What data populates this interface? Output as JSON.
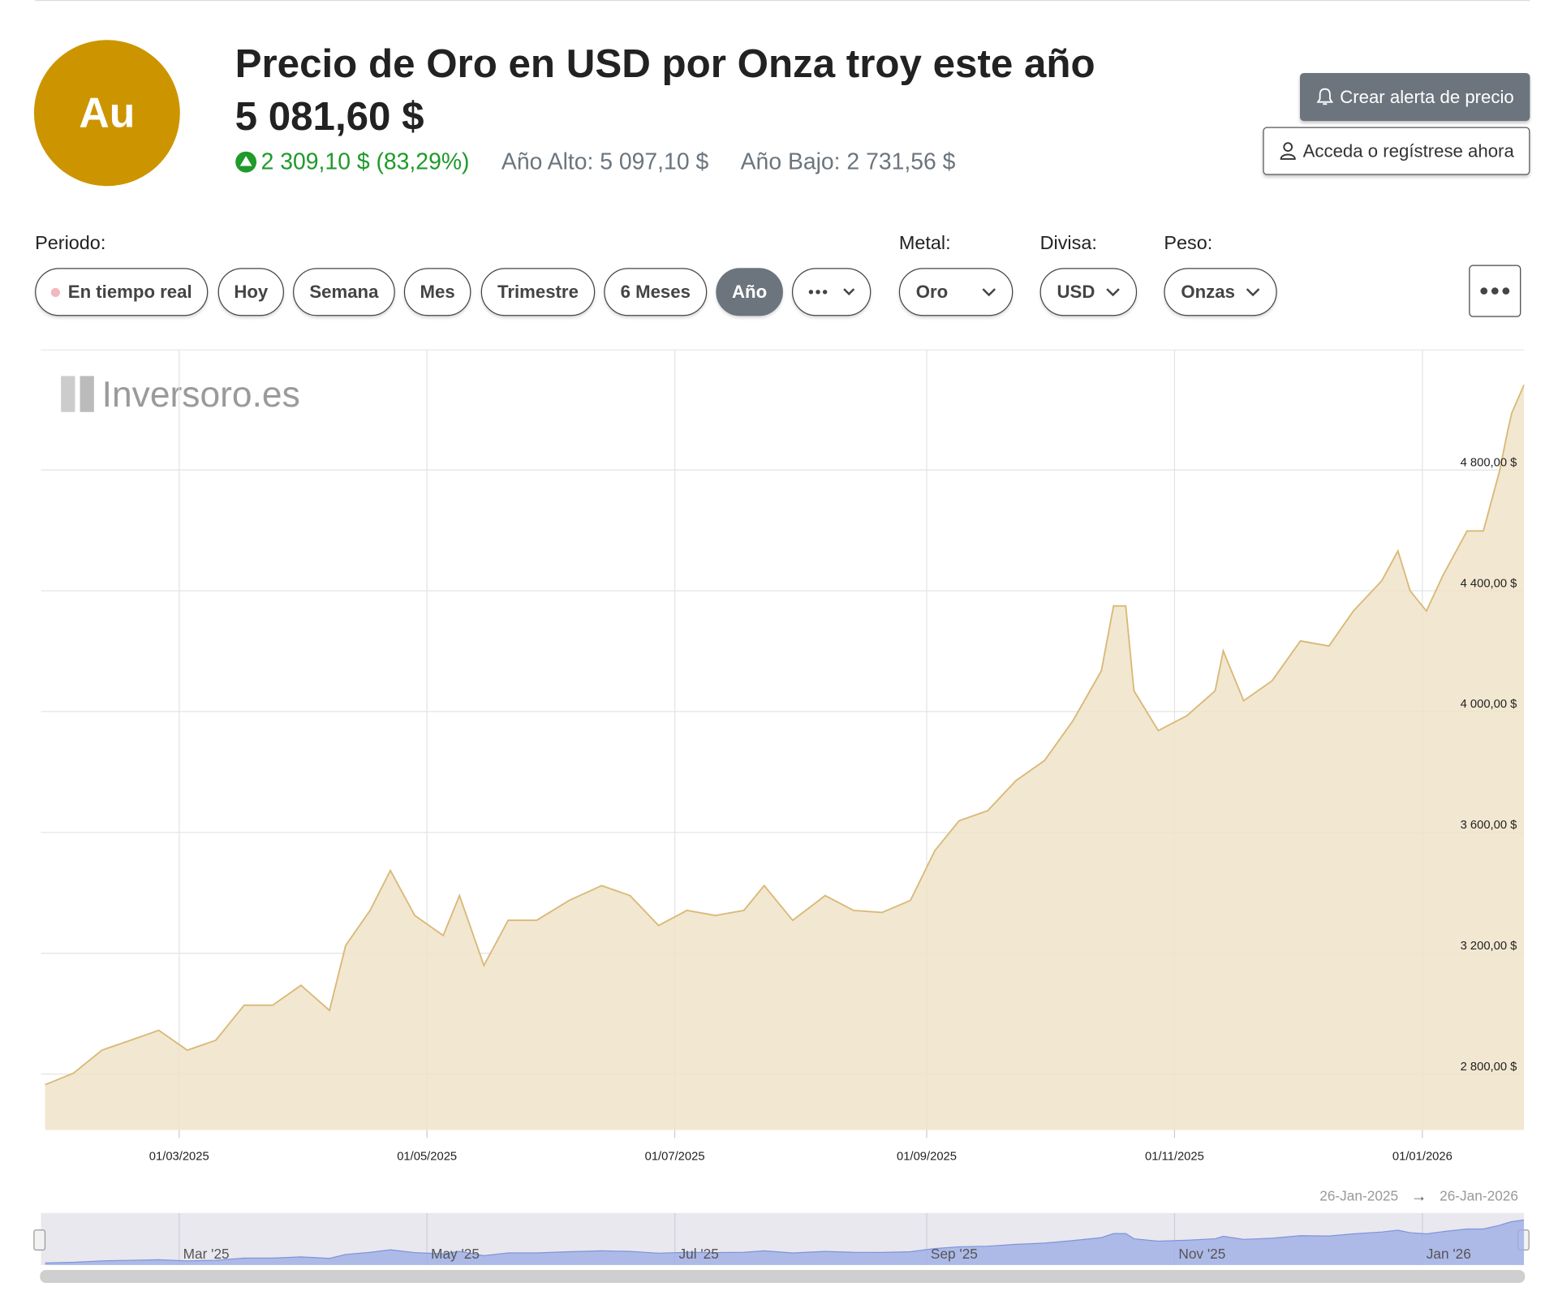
{
  "header": {
    "symbol": "Au",
    "title": "Precio de Oro en USD por Onza troy este año",
    "price": "5 081,60 $",
    "change": "2 309,10 $ (83,29%)",
    "year_high": "Año Alto: 5 097,10 $",
    "year_low": "Año Bajo: 2 731,56 $",
    "alert_button": "Crear alerta de precio",
    "login_button": "Acceda o regístrese ahora"
  },
  "controls": {
    "period_label": "Periodo:",
    "periods": [
      "En tiempo real",
      "Hoy",
      "Semana",
      "Mes",
      "Trimestre",
      "6 Meses",
      "Año"
    ],
    "active_period": "Año",
    "metal_label": "Metal:",
    "metal": "Oro",
    "currency_label": "Divisa:",
    "currency": "USD",
    "weight_label": "Peso:",
    "weight": "Onzas"
  },
  "chart_data": {
    "type": "area",
    "watermark": "Inversoro.es",
    "color": "#d9b977",
    "fill": "#f0e3c9",
    "grid": true,
    "x": [
      "2025-01-27",
      "2025-02-03",
      "2025-02-10",
      "2025-02-17",
      "2025-02-24",
      "2025-03-03",
      "2025-03-10",
      "2025-03-17",
      "2025-03-24",
      "2025-03-31",
      "2025-04-07",
      "2025-04-11",
      "2025-04-17",
      "2025-04-22",
      "2025-04-28",
      "2025-05-05",
      "2025-05-09",
      "2025-05-15",
      "2025-05-21",
      "2025-05-28",
      "2025-06-05",
      "2025-06-13",
      "2025-06-20",
      "2025-06-27",
      "2025-07-04",
      "2025-07-11",
      "2025-07-18",
      "2025-07-23",
      "2025-07-30",
      "2025-08-07",
      "2025-08-14",
      "2025-08-21",
      "2025-08-28",
      "2025-09-03",
      "2025-09-09",
      "2025-09-16",
      "2025-09-23",
      "2025-09-30",
      "2025-10-07",
      "2025-10-14",
      "2025-10-17",
      "2025-10-20",
      "2025-10-22",
      "2025-10-28",
      "2025-11-04",
      "2025-11-11",
      "2025-11-13",
      "2025-11-18",
      "2025-11-25",
      "2025-12-02",
      "2025-12-09",
      "2025-12-15",
      "2025-12-22",
      "2025-12-26",
      "2025-12-29",
      "2026-01-02",
      "2026-01-06",
      "2026-01-12",
      "2026-01-16",
      "2026-01-20",
      "2026-01-22",
      "2026-01-23",
      "2026-01-26"
    ],
    "values": [
      2765,
      2803,
      2879,
      2912,
      2945,
      2879,
      2912,
      3028,
      3028,
      3094,
      3011,
      3226,
      3342,
      3474,
      3325,
      3259,
      3391,
      3160,
      3309,
      3309,
      3375,
      3424,
      3391,
      3292,
      3342,
      3325,
      3342,
      3424,
      3309,
      3391,
      3342,
      3335,
      3375,
      3540,
      3639,
      3672,
      3772,
      3838,
      3970,
      4135,
      4350,
      4350,
      4069,
      3937,
      3986,
      4069,
      4201,
      4036,
      4102,
      4234,
      4217,
      4333,
      4433,
      4532,
      4400,
      4333,
      4449,
      4598,
      4598,
      4796,
      4929,
      4988,
      5081.6
    ],
    "xlim": [
      "2025-01-26",
      "2026-01-26"
    ],
    "xticks": [
      {
        "value": "2025-03-01",
        "label": "01/03/2025"
      },
      {
        "value": "2025-05-01",
        "label": "01/05/2025"
      },
      {
        "value": "2025-07-01",
        "label": "01/07/2025"
      },
      {
        "value": "2025-09-01",
        "label": "01/09/2025"
      },
      {
        "value": "2025-11-01",
        "label": "01/11/2025"
      },
      {
        "value": "2026-01-01",
        "label": "01/01/2026"
      }
    ],
    "ylim": [
      2615,
      5197
    ],
    "yticks": [
      {
        "value": 2800,
        "label": "2 800,00 $"
      },
      {
        "value": 3200,
        "label": "3 200,00 $"
      },
      {
        "value": 3600,
        "label": "3 600,00 $"
      },
      {
        "value": 4000,
        "label": "4 000,00 $"
      },
      {
        "value": 4400,
        "label": "4 400,00 $"
      },
      {
        "value": 4800,
        "label": "4 800,00 $"
      }
    ],
    "navigator": {
      "color": "#9daee6",
      "range_start": "26-Jan-2025",
      "range_arrow": "→",
      "range_end": "26-Jan-2026",
      "ticks": [
        {
          "value": "2025-03-01",
          "label": "Mar '25"
        },
        {
          "value": "2025-05-01",
          "label": "May '25"
        },
        {
          "value": "2025-07-01",
          "label": "Jul '25"
        },
        {
          "value": "2025-09-01",
          "label": "Sep '25"
        },
        {
          "value": "2025-11-01",
          "label": "Nov '25"
        },
        {
          "value": "2026-01-01",
          "label": "Jan '26"
        }
      ]
    }
  }
}
